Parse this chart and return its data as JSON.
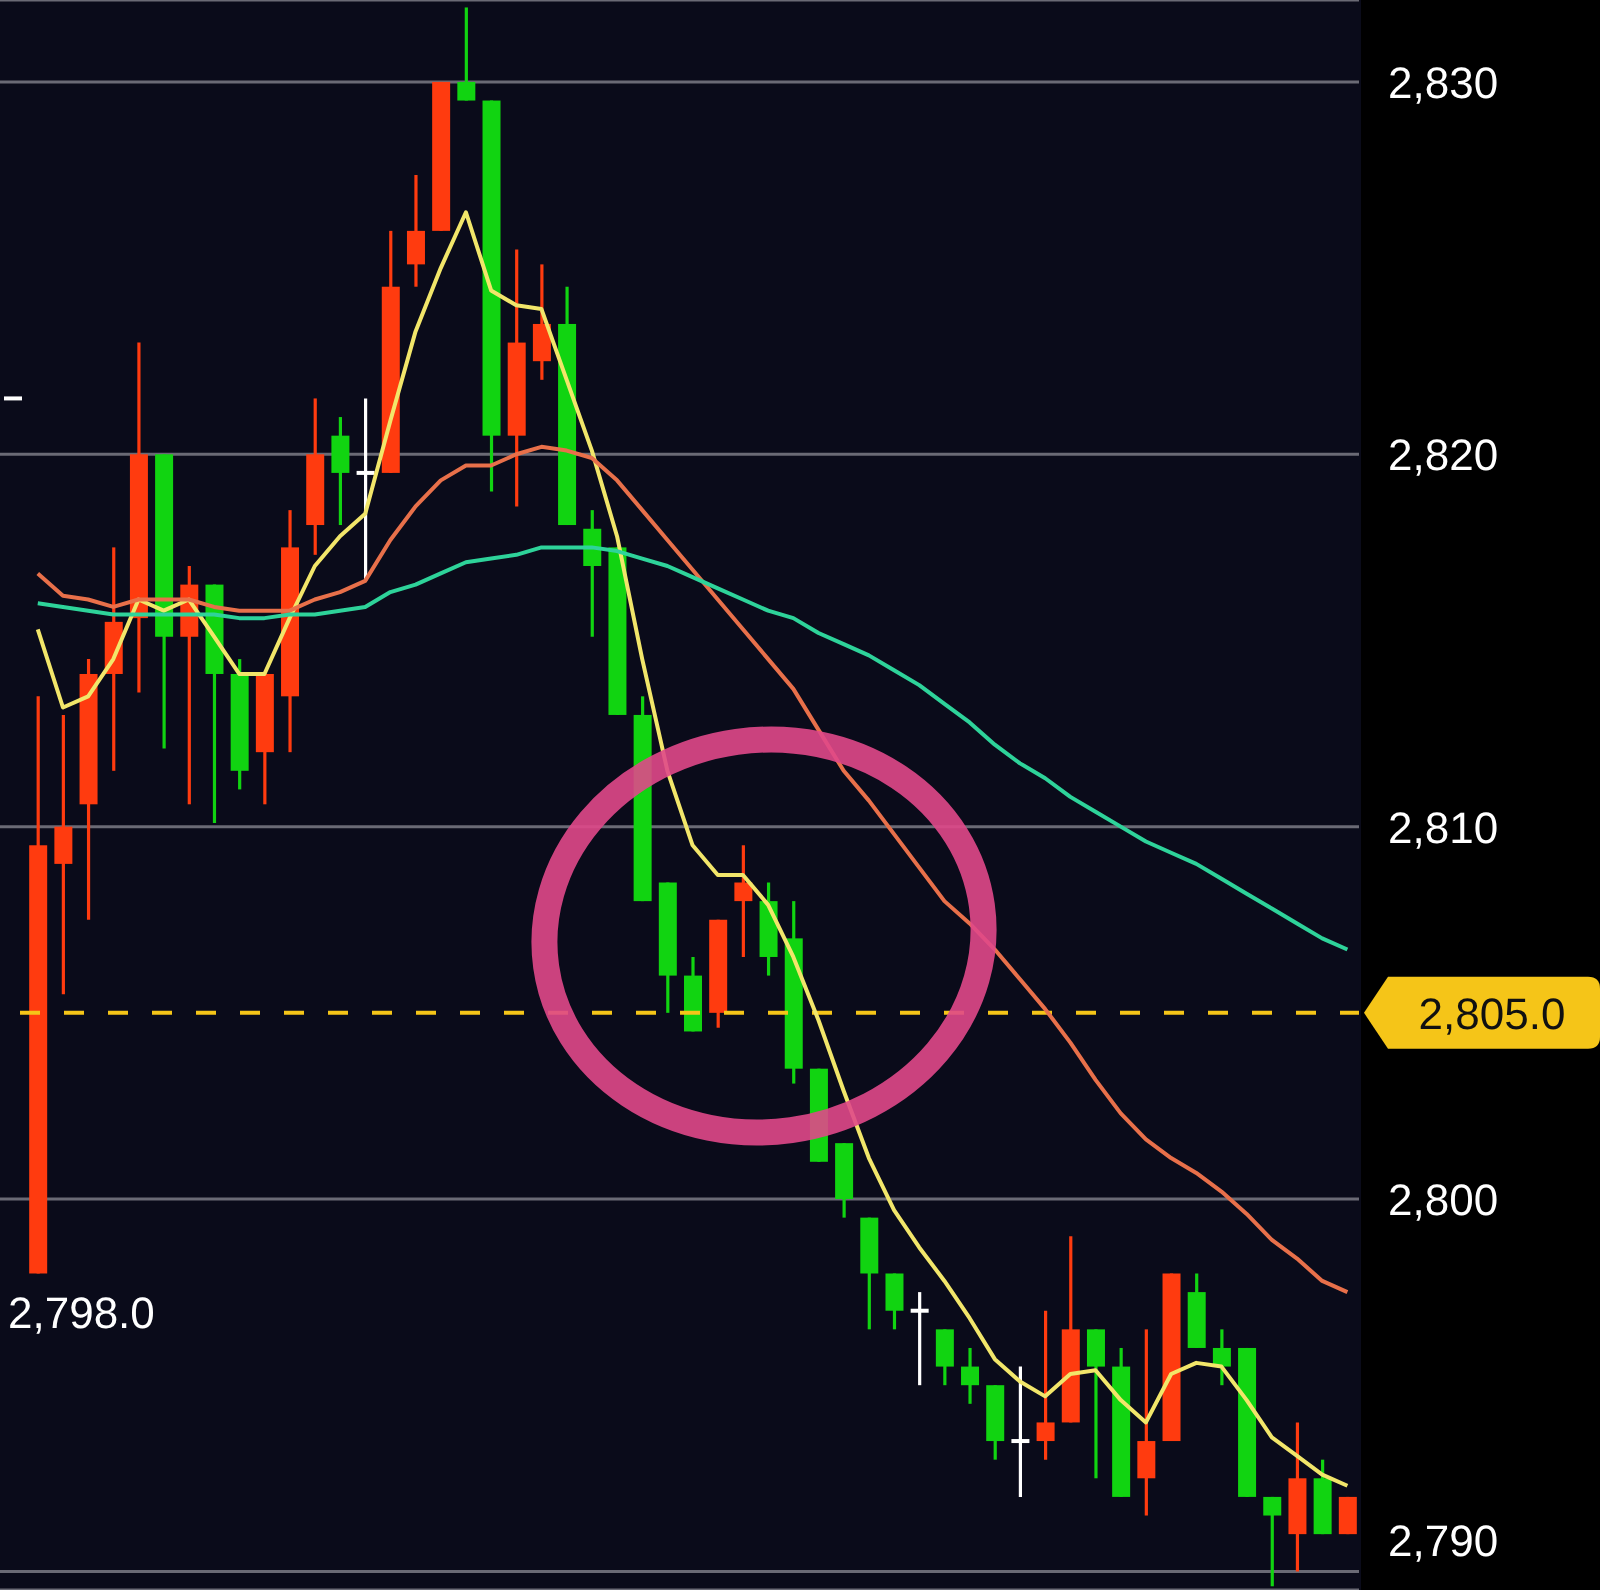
{
  "chart_data": {
    "type": "candlestick",
    "categories": [
      null,
      null,
      null,
      null,
      null,
      null,
      null,
      null,
      null,
      null,
      null,
      null,
      null,
      null,
      null,
      null,
      null,
      null,
      null,
      null,
      null,
      null,
      null,
      null,
      null,
      null,
      null,
      null,
      null,
      null,
      null,
      null,
      null,
      null,
      null,
      null,
      null,
      null,
      null,
      null,
      null,
      null,
      null,
      null,
      null,
      null,
      null,
      null,
      null,
      null,
      null,
      null,
      null,
      null
    ],
    "ohlc": [
      [
        2821.5,
        2821.5,
        2821.5,
        2821.5
      ],
      [
        2798.0,
        2813.5,
        2798.0,
        2809.5
      ],
      [
        2809.0,
        2813.0,
        2805.5,
        2810.0
      ],
      [
        2810.6,
        2814.5,
        2807.5,
        2814.1
      ],
      [
        2814.1,
        2817.5,
        2811.5,
        2815.5
      ],
      [
        2815.6,
        2823.0,
        2813.6,
        2820.0
      ],
      [
        2820.0,
        2820.0,
        2812.1,
        2815.1
      ],
      [
        2815.1,
        2817.0,
        2810.6,
        2816.5
      ],
      [
        2816.5,
        2816.5,
        2810.1,
        2814.1
      ],
      [
        2814.1,
        2814.5,
        2811.0,
        2811.5
      ],
      [
        2812.0,
        2814.1,
        2810.6,
        2814.1
      ],
      [
        2813.5,
        2818.5,
        2812.0,
        2817.5
      ],
      [
        2818.1,
        2821.5,
        2817.3,
        2820.0
      ],
      [
        2820.5,
        2821.0,
        2818.1,
        2819.5
      ],
      [
        2819.5,
        2821.5,
        2816.6,
        2819.5
      ],
      [
        2819.5,
        2826.0,
        2819.5,
        2824.5
      ],
      [
        2825.1,
        2827.5,
        2824.5,
        2826.0
      ],
      [
        2826.0,
        2830.0,
        2826.0,
        2830.0
      ],
      [
        2830.0,
        2832.0,
        2829.5,
        2829.5
      ],
      [
        2829.5,
        2829.5,
        2819.0,
        2820.5
      ],
      [
        2820.5,
        2825.5,
        2818.6,
        2823.0
      ],
      [
        2822.5,
        2825.1,
        2822.0,
        2823.5
      ],
      [
        2823.5,
        2824.5,
        2818.1,
        2818.1
      ],
      [
        2818.0,
        2818.5,
        2815.1,
        2817.0
      ],
      [
        2817.5,
        2817.5,
        2813.0,
        2813.0
      ],
      [
        2813.0,
        2813.5,
        2808.0,
        2808.0
      ],
      [
        2808.5,
        2808.5,
        2805.0,
        2806.0
      ],
      [
        2806.0,
        2806.5,
        2804.5,
        2804.5
      ],
      [
        2805.0,
        2807.5,
        2804.6,
        2807.5
      ],
      [
        2808.0,
        2809.5,
        2806.5,
        2808.5
      ],
      [
        2808.0,
        2808.5,
        2806.0,
        2806.5
      ],
      [
        2807.0,
        2808.0,
        2803.1,
        2803.5
      ],
      [
        2803.5,
        2803.5,
        2801.0,
        2801.0
      ],
      [
        2801.5,
        2801.5,
        2799.5,
        2800.0
      ],
      [
        2799.5,
        2799.5,
        2796.5,
        2798.0
      ],
      [
        2798.0,
        2798.0,
        2796.5,
        2797.0
      ],
      [
        2797.0,
        2797.5,
        2795.0,
        2797.0
      ],
      [
        2796.5,
        2796.5,
        2795.0,
        2795.5
      ],
      [
        2795.5,
        2796.0,
        2794.5,
        2795.0
      ],
      [
        2795.0,
        2795.0,
        2793.0,
        2793.5
      ],
      [
        2793.5,
        2795.5,
        2792.0,
        2793.5
      ],
      [
        2793.5,
        2797.0,
        2793.0,
        2794.0
      ],
      [
        2794.0,
        2799.0,
        2794.0,
        2796.5
      ],
      [
        2796.5,
        2796.5,
        2792.5,
        2795.5
      ],
      [
        2795.5,
        2796.0,
        2792.0,
        2792.0
      ],
      [
        2792.5,
        2796.5,
        2791.5,
        2793.5
      ],
      [
        2793.5,
        2798.0,
        2793.5,
        2798.0
      ],
      [
        2797.5,
        2798.0,
        2796.0,
        2796.0
      ],
      [
        2796.0,
        2796.5,
        2795.0,
        2795.5
      ],
      [
        2796.0,
        2796.0,
        2792.0,
        2792.0
      ],
      [
        2792.0,
        2792.0,
        2789.6,
        2791.5
      ],
      [
        2791.0,
        2794.0,
        2790.0,
        2792.5
      ],
      [
        2792.5,
        2793.0,
        2791.0,
        2791.0
      ],
      [
        2791.0,
        2792.0,
        2791.0,
        2792.0
      ]
    ],
    "colors": [
      "#ffffff",
      "#ff3b0f",
      "#ff3b0f",
      "#ff3b0f",
      "#ff3b0f",
      "#ff3b0f",
      "#11d411",
      "#ff3b0f",
      "#11d411",
      "#11d411",
      "#ff3b0f",
      "#ff3b0f",
      "#ff3b0f",
      "#11d411",
      "#ffffff",
      "#ff3b0f",
      "#ff3b0f",
      "#ff3b0f",
      "#11d411",
      "#11d411",
      "#ff3b0f",
      "#ff3b0f",
      "#11d411",
      "#11d411",
      "#11d411",
      "#11d411",
      "#11d411",
      "#11d411",
      "#ff3b0f",
      "#ff3b0f",
      "#11d411",
      "#11d411",
      "#11d411",
      "#11d411",
      "#11d411",
      "#11d411",
      "#ffffff",
      "#11d411",
      "#11d411",
      "#11d411",
      "#ffffff",
      "#ff3b0f",
      "#ff3b0f",
      "#11d411",
      "#11d411",
      "#ff3b0f",
      "#ff3b0f",
      "#11d411",
      "#11d411",
      "#11d411",
      "#11d411",
      "#ff3b0f",
      "#11d411",
      "#ff3b0f"
    ],
    "series": [
      {
        "type": "line",
        "color": "#f2e66a",
        "values": [
          null,
          2815.3,
          2813.2,
          2813.5,
          2814.5,
          2816.1,
          2815.8,
          2816.1,
          2815.1,
          2814.1,
          2814.1,
          2815.6,
          2817.0,
          2817.8,
          2818.4,
          2820.9,
          2823.3,
          2825.0,
          2826.5,
          2824.4,
          2824.0,
          2823.9,
          2822.0,
          2820.1,
          2817.8,
          2814.5,
          2811.5,
          2809.5,
          2808.7,
          2808.7,
          2807.9,
          2806.5,
          2804.8,
          2802.9,
          2801.1,
          2799.7,
          2798.7,
          2797.8,
          2796.8,
          2795.7,
          2795.1,
          2794.7,
          2795.3,
          2795.4,
          2794.6,
          2794.0,
          2795.3,
          2795.6,
          2795.5,
          2794.6,
          2793.6,
          2793.1,
          2792.6,
          2792.3
        ]
      },
      {
        "type": "line",
        "color": "#e8704a",
        "values": [
          null,
          2816.8,
          2816.2,
          2816.1,
          2815.9,
          2816.1,
          2816.1,
          2816.1,
          2815.9,
          2815.8,
          2815.8,
          2815.8,
          2816.1,
          2816.3,
          2816.6,
          2817.7,
          2818.6,
          2819.3,
          2819.7,
          2819.7,
          2820.0,
          2820.2,
          2820.1,
          2819.9,
          2819.3,
          2818.5,
          2817.7,
          2816.9,
          2816.1,
          2815.3,
          2814.5,
          2813.7,
          2812.6,
          2811.5,
          2810.7,
          2809.8,
          2808.9,
          2808.0,
          2807.4,
          2806.7,
          2805.9,
          2805.1,
          2804.2,
          2803.2,
          2802.3,
          2801.6,
          2801.1,
          2800.7,
          2800.2,
          2799.6,
          2798.9,
          2798.4,
          2797.8,
          2797.5
        ]
      },
      {
        "type": "line",
        "color": "#2ed39a",
        "values": [
          null,
          2816.0,
          2815.9,
          2815.8,
          2815.7,
          2815.7,
          2815.7,
          2815.7,
          2815.7,
          2815.6,
          2815.6,
          2815.7,
          2815.7,
          2815.8,
          2815.9,
          2816.3,
          2816.5,
          2816.8,
          2817.1,
          2817.2,
          2817.3,
          2817.5,
          2817.5,
          2817.5,
          2817.4,
          2817.2,
          2817.0,
          2816.7,
          2816.4,
          2816.1,
          2815.8,
          2815.6,
          2815.2,
          2814.9,
          2814.6,
          2814.2,
          2813.8,
          2813.3,
          2812.8,
          2812.2,
          2811.7,
          2811.3,
          2810.8,
          2810.4,
          2810.0,
          2809.6,
          2809.3,
          2809.0,
          2808.6,
          2808.2,
          2807.8,
          2807.4,
          2807.0,
          2806.7
        ]
      }
    ],
    "ylim": [
      2789.5,
      2832.2
    ],
    "yticks": [
      {
        "value": 2790,
        "label": "2,790"
      },
      {
        "value": 2800,
        "label": "2,800"
      },
      {
        "value": 2810,
        "label": "2,810"
      },
      {
        "value": 2820,
        "label": "2,820"
      },
      {
        "value": 2830,
        "label": "2,830"
      }
    ],
    "tick_labels": "y",
    "grid": "y",
    "ref_lines": [
      {
        "axis": "y",
        "value": 2805.0,
        "label": "2,805.0",
        "color": "#f5c518",
        "line_style": "dashed"
      }
    ],
    "annotations": [
      "2,798.0"
    ]
  }
}
